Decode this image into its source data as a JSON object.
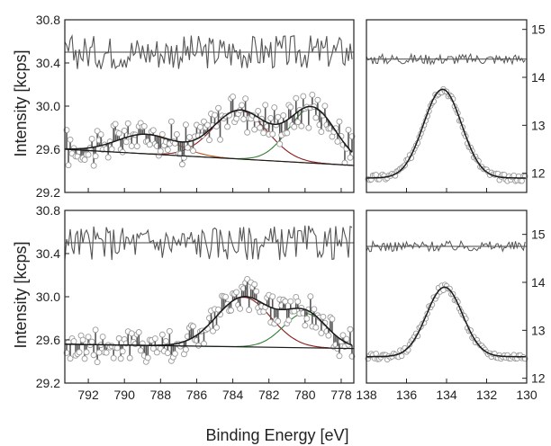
{
  "chart_data": {
    "type": "line",
    "xlabel": "Binding Energy [eV]",
    "ylabel": "Intensity [kcps]",
    "colors": {
      "data": "#9a9a9a",
      "bars": "#555555",
      "envelope": "#1a1a1a",
      "red": "#8b1a1a",
      "green": "#2e7d32",
      "orange": "#c0541c",
      "background": "#1a1a1a",
      "residual": "#555555",
      "baseline": "#444444"
    },
    "left_x_ticks": [
      "792",
      "790",
      "788",
      "786",
      "784",
      "782",
      "780",
      "778"
    ],
    "right_x_ticks": [
      "138",
      "136",
      "134",
      "132",
      "130"
    ],
    "left_y_ticks": [
      "30.8",
      "30.4",
      "30.0",
      "29.6",
      "29.2"
    ],
    "right_y_ticks": [
      "15",
      "14",
      "13",
      "12"
    ],
    "xlim_left": [
      793.3,
      777.3
    ],
    "xlim_right": [
      138,
      130
    ],
    "ylim_left": [
      29.2,
      30.8
    ],
    "panels": [
      {
        "name": "top",
        "ylim_right": [
          11.6,
          15.2
        ],
        "left": {
          "baseline": {
            "x": [
              793.3,
              777.3
            ],
            "y": [
              29.6,
              29.45
            ]
          },
          "components": [
            {
              "color": "orange",
              "center": 788.8,
              "amplitude": 0.18,
              "sigma": 1.6
            },
            {
              "color": "red",
              "center": 783.6,
              "amplitude": 0.45,
              "sigma": 1.5
            },
            {
              "color": "green",
              "center": 779.6,
              "amplitude": 0.51,
              "sigma": 1.3
            }
          ],
          "residual_level": 30.5
        },
        "right": {
          "baseline": 11.9,
          "peak": {
            "center": 134.2,
            "amplitude": 1.85,
            "sigma": 0.95
          },
          "residual_level": 14.38
        }
      },
      {
        "name": "bottom",
        "ylim_right": [
          11.9,
          15.5
        ],
        "left": {
          "baseline": {
            "x": [
              793.3,
              777.3
            ],
            "y": [
              29.56,
              29.52
            ]
          },
          "components": [
            {
              "color": "red",
              "center": 783.4,
              "amplitude": 0.46,
              "sigma": 1.5
            },
            {
              "color": "green",
              "center": 780.0,
              "amplitude": 0.32,
              "sigma": 1.2
            }
          ],
          "residual_level": 30.5
        },
        "right": {
          "baseline": 12.45,
          "peak": {
            "center": 134.1,
            "amplitude": 1.45,
            "sigma": 0.9
          },
          "residual_level": 14.75
        }
      }
    ]
  }
}
